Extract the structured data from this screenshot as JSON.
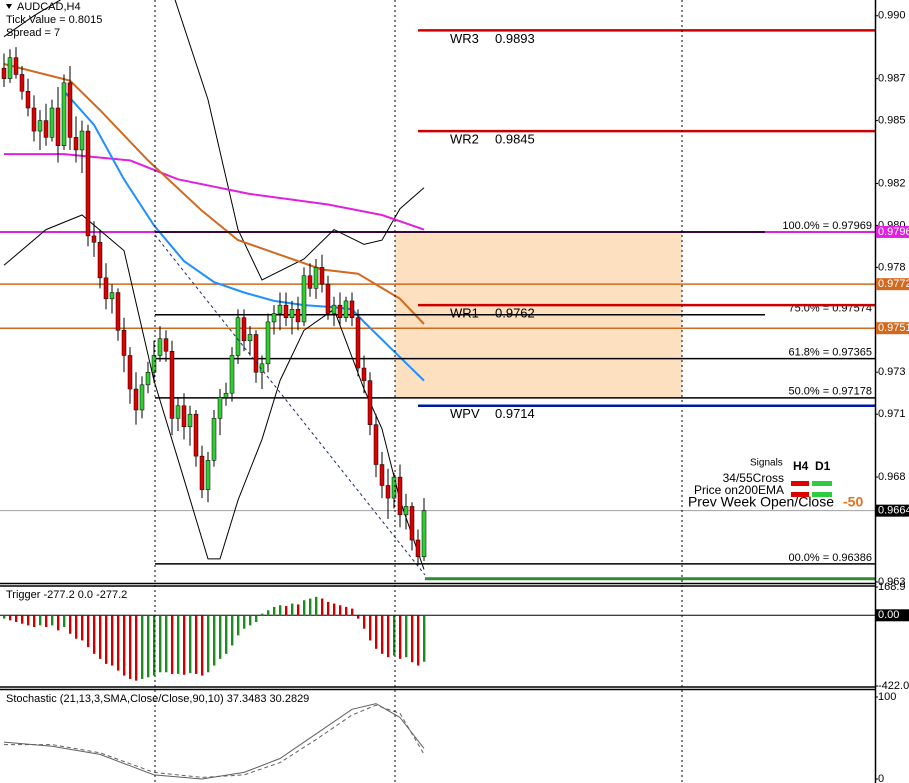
{
  "chart_data": [
    {
      "type": "candlestick",
      "title": "AUDCAD,H4",
      "info": [
        "Tick Value = 0.8015",
        "Spread = 7"
      ],
      "ylim": [
        0.96295,
        0.99075
      ],
      "yticks": [
        {
          "value": 0.99,
          "label": "0.990"
        },
        {
          "value": 0.987,
          "label": "0.987"
        },
        {
          "value": 0.985,
          "label": "0.985"
        },
        {
          "value": 0.982,
          "label": "0.982"
        },
        {
          "value": 0.98,
          "label": "0.980"
        },
        {
          "value": 0.978,
          "label": "0.978"
        },
        {
          "value": 0.975,
          "label": "0.975"
        },
        {
          "value": 0.973,
          "label": "0.973"
        },
        {
          "value": 0.971,
          "label": "0.971"
        },
        {
          "value": 0.968,
          "label": "0.968"
        },
        {
          "value": 0.963,
          "label": "0.963"
        }
      ],
      "up_color": "#32cd32",
      "down_color": "#dd0000",
      "candles": [
        [
          0.9875,
          0.9882,
          0.9866,
          0.987
        ],
        [
          0.987,
          0.9884,
          0.9868,
          0.988
        ],
        [
          0.988,
          0.9885,
          0.987,
          0.9872
        ],
        [
          0.9872,
          0.9876,
          0.986,
          0.9864
        ],
        [
          0.9864,
          0.987,
          0.9852,
          0.9856
        ],
        [
          0.9856,
          0.9862,
          0.984,
          0.9845
        ],
        [
          0.9845,
          0.9855,
          0.9836,
          0.985
        ],
        [
          0.985,
          0.9858,
          0.9838,
          0.9842
        ],
        [
          0.9842,
          0.986,
          0.984,
          0.9856
        ],
        [
          0.9856,
          0.9866,
          0.983,
          0.9838
        ],
        [
          0.9838,
          0.9872,
          0.9836,
          0.9868
        ],
        [
          0.9868,
          0.9876,
          0.9836,
          0.9842
        ],
        [
          0.9842,
          0.9852,
          0.983,
          0.9836
        ],
        [
          0.9836,
          0.985,
          0.9825,
          0.9845
        ],
        [
          0.9845,
          0.9848,
          0.979,
          0.9795
        ],
        [
          0.9795,
          0.9802,
          0.9785,
          0.9792
        ],
        [
          0.9792,
          0.9798,
          0.977,
          0.9775
        ],
        [
          0.9775,
          0.9782,
          0.976,
          0.9765
        ],
        [
          0.9765,
          0.9772,
          0.9758,
          0.9768
        ],
        [
          0.9768,
          0.977,
          0.9745,
          0.975
        ],
        [
          0.975,
          0.9756,
          0.973,
          0.9738
        ],
        [
          0.9738,
          0.9742,
          0.9715,
          0.9722
        ],
        [
          0.9722,
          0.973,
          0.9705,
          0.9712
        ],
        [
          0.9712,
          0.9728,
          0.9708,
          0.9724
        ],
        [
          0.9724,
          0.9735,
          0.972,
          0.973
        ],
        [
          0.973,
          0.9745,
          0.9725,
          0.9738
        ],
        [
          0.9738,
          0.9752,
          0.9735,
          0.9746
        ],
        [
          0.9746,
          0.975,
          0.9735,
          0.974
        ],
        [
          0.974,
          0.9745,
          0.97,
          0.9708
        ],
        [
          0.9708,
          0.9718,
          0.9702,
          0.9714
        ],
        [
          0.9714,
          0.972,
          0.9698,
          0.9704
        ],
        [
          0.9704,
          0.9714,
          0.9695,
          0.971
        ],
        [
          0.971,
          0.9712,
          0.9685,
          0.969
        ],
        [
          0.969,
          0.9695,
          0.967,
          0.9674
        ],
        [
          0.9674,
          0.9692,
          0.9668,
          0.9688
        ],
        [
          0.9688,
          0.9712,
          0.9685,
          0.9708
        ],
        [
          0.9708,
          0.9722,
          0.97,
          0.9718
        ],
        [
          0.9718,
          0.9725,
          0.9714,
          0.972
        ],
        [
          0.972,
          0.9742,
          0.9716,
          0.9738
        ],
        [
          0.9738,
          0.976,
          0.9734,
          0.9756
        ],
        [
          0.9756,
          0.976,
          0.974,
          0.9745
        ],
        [
          0.9745,
          0.9752,
          0.9738,
          0.9748
        ],
        [
          0.9748,
          0.975,
          0.9725,
          0.973
        ],
        [
          0.973,
          0.9738,
          0.9722,
          0.9734
        ],
        [
          0.9734,
          0.9758,
          0.973,
          0.9754
        ],
        [
          0.9754,
          0.9762,
          0.9748,
          0.9758
        ],
        [
          0.9758,
          0.9768,
          0.975,
          0.9762
        ],
        [
          0.9762,
          0.9768,
          0.9752,
          0.9756
        ],
        [
          0.9756,
          0.9764,
          0.9748,
          0.976
        ],
        [
          0.976,
          0.9766,
          0.975,
          0.9754
        ],
        [
          0.9754,
          0.978,
          0.9752,
          0.9776
        ],
        [
          0.9776,
          0.9782,
          0.9766,
          0.977
        ],
        [
          0.977,
          0.9784,
          0.9765,
          0.978
        ],
        [
          0.978,
          0.9786,
          0.9768,
          0.9772
        ],
        [
          0.9772,
          0.9776,
          0.9755,
          0.9758
        ],
        [
          0.9758,
          0.9766,
          0.9752,
          0.9762
        ],
        [
          0.9762,
          0.9768,
          0.9752,
          0.9756
        ],
        [
          0.9756,
          0.9766,
          0.9754,
          0.9764
        ],
        [
          0.9764,
          0.9768,
          0.9752,
          0.9756
        ],
        [
          0.9756,
          0.976,
          0.9728,
          0.9732
        ],
        [
          0.9732,
          0.9738,
          0.972,
          0.9726
        ],
        [
          0.9726,
          0.973,
          0.97,
          0.9705
        ],
        [
          0.9705,
          0.971,
          0.968,
          0.9686
        ],
        [
          0.9686,
          0.9692,
          0.967,
          0.9676
        ],
        [
          0.9676,
          0.9684,
          0.966,
          0.967
        ],
        [
          0.967,
          0.9682,
          0.9665,
          0.968
        ],
        [
          0.968,
          0.9686,
          0.9656,
          0.9662
        ],
        [
          0.9662,
          0.9672,
          0.9655,
          0.9666
        ],
        [
          0.9666,
          0.9668,
          0.9645,
          0.965
        ],
        [
          0.965,
          0.9655,
          0.9638,
          0.9642
        ],
        [
          0.9642,
          0.967,
          0.964,
          0.9664
        ]
      ],
      "series": [
        {
          "color": "#000000",
          "width": 1,
          "x": [
            0,
            5,
            12,
            28,
            34,
            39,
            43,
            50,
            55,
            60,
            63,
            66,
            70
          ],
          "values": [
            0.989,
            0.99,
            0.9912,
            0.9912,
            0.986,
            0.9798,
            0.9774,
            0.9784,
            0.9798,
            0.9791,
            0.9793,
            0.9808,
            0.9818
          ]
        },
        {
          "color": "#000000",
          "width": 1,
          "x": [
            0,
            7,
            13,
            20,
            25,
            30,
            34,
            36,
            39,
            43,
            46,
            50,
            55,
            60,
            63,
            66,
            70
          ],
          "values": [
            0.9781,
            0.9798,
            0.9805,
            0.9788,
            0.9726,
            0.9679,
            0.9641,
            0.9641,
            0.9669,
            0.9698,
            0.9726,
            0.975,
            0.976,
            0.9722,
            0.9703,
            0.9669,
            0.9636
          ]
        },
        {
          "color": "#e020e0",
          "width": 2,
          "x": [
            0,
            10,
            21,
            29,
            41,
            54,
            63,
            70
          ],
          "values": [
            0.9834,
            0.9834,
            0.9831,
            0.9822,
            0.9815,
            0.981,
            0.9805,
            0.9798
          ]
        },
        {
          "color": "#d2691e",
          "width": 2,
          "x": [
            0,
            11,
            16,
            24,
            33,
            39,
            46,
            53,
            59,
            66,
            70
          ],
          "values": [
            0.9877,
            0.9869,
            0.9855,
            0.9831,
            0.9807,
            0.9793,
            0.9786,
            0.9779,
            0.9777,
            0.9765,
            0.9753
          ]
        },
        {
          "color": "#1e90ff",
          "width": 2,
          "x": [
            10,
            15,
            20,
            25,
            30,
            35,
            40,
            45,
            50,
            55,
            58,
            60,
            65,
            70
          ],
          "values": [
            0.9864,
            0.9848,
            0.9822,
            0.98,
            0.9783,
            0.9773,
            0.9768,
            0.9764,
            0.9762,
            0.9761,
            0.976,
            0.9754,
            0.974,
            0.9726
          ]
        }
      ],
      "levels": [
        {
          "value": 0.97969,
          "color": "#e020e0"
        },
        {
          "value": 0.9772,
          "color": "#d2691e"
        },
        {
          "value": 0.9751,
          "color": "#d2691e"
        },
        {
          "value": 0.9664,
          "color": "#000000"
        }
      ],
      "target_line": {
        "value": 0.96315,
        "color": "#2e8b2e"
      },
      "zone": {
        "top": 0.97969,
        "bottom": 0.97178
      },
      "fib": [
        {
          "label": "100.0% = 0.97969",
          "value": 0.97969
        },
        {
          "label": "75.0% = 0.97574",
          "value": 0.97574
        },
        {
          "label": "61.8% = 0.97365",
          "value": 0.97365
        },
        {
          "label": "50.0% = 0.97178",
          "value": 0.97178
        },
        {
          "label": "00.0% = 0.96386",
          "value": 0.96386
        }
      ],
      "pivots": [
        {
          "name": "WR3",
          "value": 0.9893,
          "color": "#cc0000"
        },
        {
          "name": "WR2",
          "value": 0.9845,
          "color": "#cc0000"
        },
        {
          "name": "WR1",
          "value": 0.9762,
          "color": "#cc0000"
        },
        {
          "name": "WPV",
          "value": 0.9714,
          "color": "#0018a8"
        }
      ],
      "signals": {
        "title": "Signals",
        "columns": [
          "H4",
          "D1"
        ],
        "rows": [
          "34/55Cross",
          "Price on200EMA",
          "Prev Week Open/Close"
        ],
        "value": -50
      }
    },
    {
      "type": "bar",
      "label": "Trigger -277.2 0.0 -277.2",
      "ylim": [
        -422.0,
        168.9
      ],
      "yticks": [
        168.9,
        {
          "value": 0,
          "label": "0.00"
        },
        {
          "value": -422.0,
          "label": "-422.0"
        }
      ],
      "up_color": "#1e8b1e",
      "down_color": "#cc0000",
      "values": [
        -20,
        -30,
        -40,
        -50,
        -60,
        -70,
        -60,
        -70,
        -60,
        -90,
        -70,
        -110,
        -140,
        -150,
        -190,
        -230,
        -260,
        -290,
        -300,
        -330,
        -360,
        -380,
        -390,
        -380,
        -370,
        -360,
        -340,
        -340,
        -350,
        -350,
        -355,
        -345,
        -350,
        -360,
        -340,
        -300,
        -260,
        -230,
        -180,
        -120,
        -80,
        -60,
        -40,
        10,
        30,
        50,
        60,
        55,
        70,
        65,
        90,
        100,
        110,
        100,
        80,
        70,
        60,
        50,
        40,
        -20,
        -80,
        -150,
        -200,
        -230,
        -250,
        -240,
        -260,
        -250,
        -280,
        -300,
        -277.2
      ]
    },
    {
      "type": "line",
      "label": "Stochastic (21,13,3,SMA,Close/Close,90,10) 37.3483 30.2829",
      "ylim": [
        0,
        100
      ],
      "yticks": [
        100,
        0
      ],
      "series": [
        {
          "color": "#606060",
          "dash": false,
          "x": [
            0,
            8,
            16,
            25,
            33,
            40,
            46,
            52,
            58,
            62,
            66,
            70
          ],
          "values": [
            45,
            40,
            30,
            5,
            0,
            8,
            25,
            55,
            85,
            92,
            75,
            37.3483
          ]
        },
        {
          "color": "#606060",
          "dash": true,
          "x": [
            0,
            8,
            16,
            25,
            33,
            40,
            46,
            52,
            58,
            62,
            66,
            70
          ],
          "values": [
            42,
            42,
            32,
            8,
            2,
            5,
            20,
            48,
            78,
            90,
            80,
            30.2829
          ]
        }
      ]
    }
  ]
}
